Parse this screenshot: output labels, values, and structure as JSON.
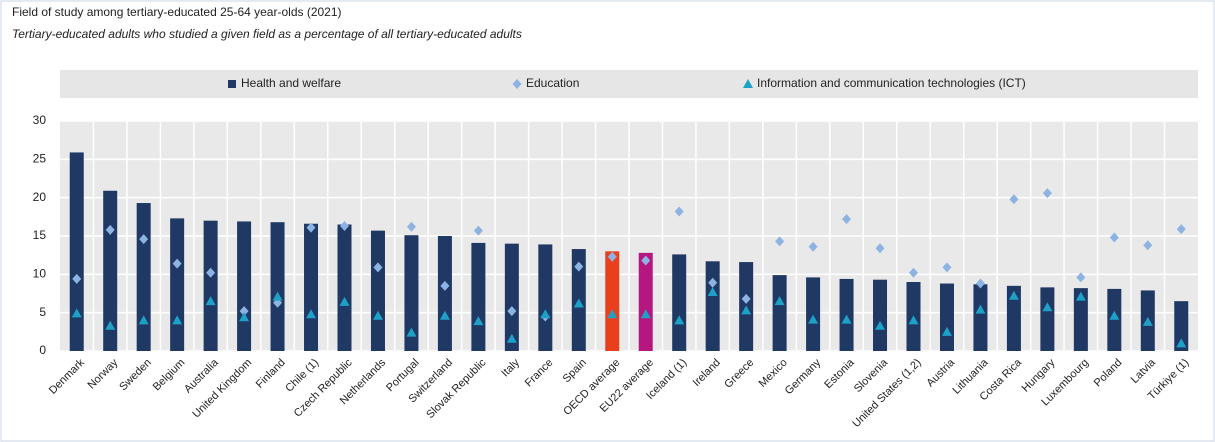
{
  "chart_data": {
    "type": "bar",
    "title": "Field of study among tertiary-educated 25-64 year-olds (2021)",
    "subtitle": "Tertiary-educated adults who studied a given field as a percentage of all tertiary-educated adults",
    "categories": [
      "Denmark",
      "Norway",
      "Sweden",
      "Belgium",
      "Australia",
      "United Kingdom",
      "Finland",
      "Chile (1)",
      "Czech Republic",
      "Netherlands",
      "Portugal",
      "Switzerland",
      "Slovak Republic",
      "Italy",
      "France",
      "Spain",
      "OECD average",
      "EU22 average",
      "Iceland (1)",
      "Ireland",
      "Greece",
      "Mexico",
      "Germany",
      "Estonia",
      "Slovenia",
      "United States (1,2)",
      "Austria",
      "Lithuania",
      "Costa Rica",
      "Hungary",
      "Luxembourg",
      "Poland",
      "Latvia",
      "Türkiye (1)"
    ],
    "series": [
      {
        "name": "Health and welfare",
        "type": "bar",
        "color": "#1f3864",
        "colors": [
          "#1f3864",
          "#1f3864",
          "#1f3864",
          "#1f3864",
          "#1f3864",
          "#1f3864",
          "#1f3864",
          "#1f3864",
          "#1f3864",
          "#1f3864",
          "#1f3864",
          "#1f3864",
          "#1f3864",
          "#1f3864",
          "#1f3864",
          "#1f3864",
          "#e8401c",
          "#b5177f",
          "#1f3864",
          "#1f3864",
          "#1f3864",
          "#1f3864",
          "#1f3864",
          "#1f3864",
          "#1f3864",
          "#1f3864",
          "#1f3864",
          "#1f3864",
          "#1f3864",
          "#1f3864",
          "#1f3864",
          "#1f3864",
          "#1f3864",
          "#1f3864"
        ],
        "values": [
          25.9,
          20.9,
          19.3,
          17.3,
          17.0,
          16.9,
          16.8,
          16.6,
          16.5,
          15.7,
          15.1,
          15.0,
          14.1,
          14.0,
          13.9,
          13.3,
          13.0,
          12.8,
          12.6,
          11.7,
          11.6,
          9.9,
          9.6,
          9.4,
          9.3,
          9.0,
          8.8,
          8.7,
          8.5,
          8.3,
          8.2,
          8.1,
          7.9,
          6.5
        ]
      },
      {
        "name": "Education",
        "type": "scatter",
        "marker": "diamond",
        "color": "#8db3e2",
        "values": [
          9.4,
          15.8,
          14.6,
          11.4,
          10.2,
          5.2,
          6.3,
          16.1,
          16.3,
          10.9,
          16.2,
          8.5,
          15.7,
          5.2,
          4.5,
          11.0,
          12.3,
          11.8,
          18.2,
          8.9,
          6.8,
          14.3,
          13.6,
          17.2,
          13.4,
          10.2,
          10.9,
          8.8,
          19.8,
          20.6,
          9.6,
          14.8,
          13.8,
          15.9
        ]
      },
      {
        "name": "Information and communication technologies (ICT)",
        "type": "scatter",
        "marker": "triangle",
        "color": "#1ea1c7",
        "values": [
          4.9,
          3.3,
          4.0,
          4.0,
          6.5,
          4.4,
          7.1,
          4.8,
          6.4,
          4.6,
          2.4,
          4.6,
          3.9,
          1.6,
          4.8,
          6.2,
          4.8,
          4.8,
          4.0,
          7.7,
          5.3,
          6.5,
          4.1,
          4.1,
          3.3,
          4.0,
          2.5,
          5.4,
          7.2,
          5.7,
          7.1,
          4.6,
          3.8,
          1.0
        ]
      }
    ],
    "ylim": [
      0,
      30
    ],
    "yticks": [
      0,
      5,
      10,
      15,
      20,
      25,
      30
    ],
    "grid": true
  }
}
